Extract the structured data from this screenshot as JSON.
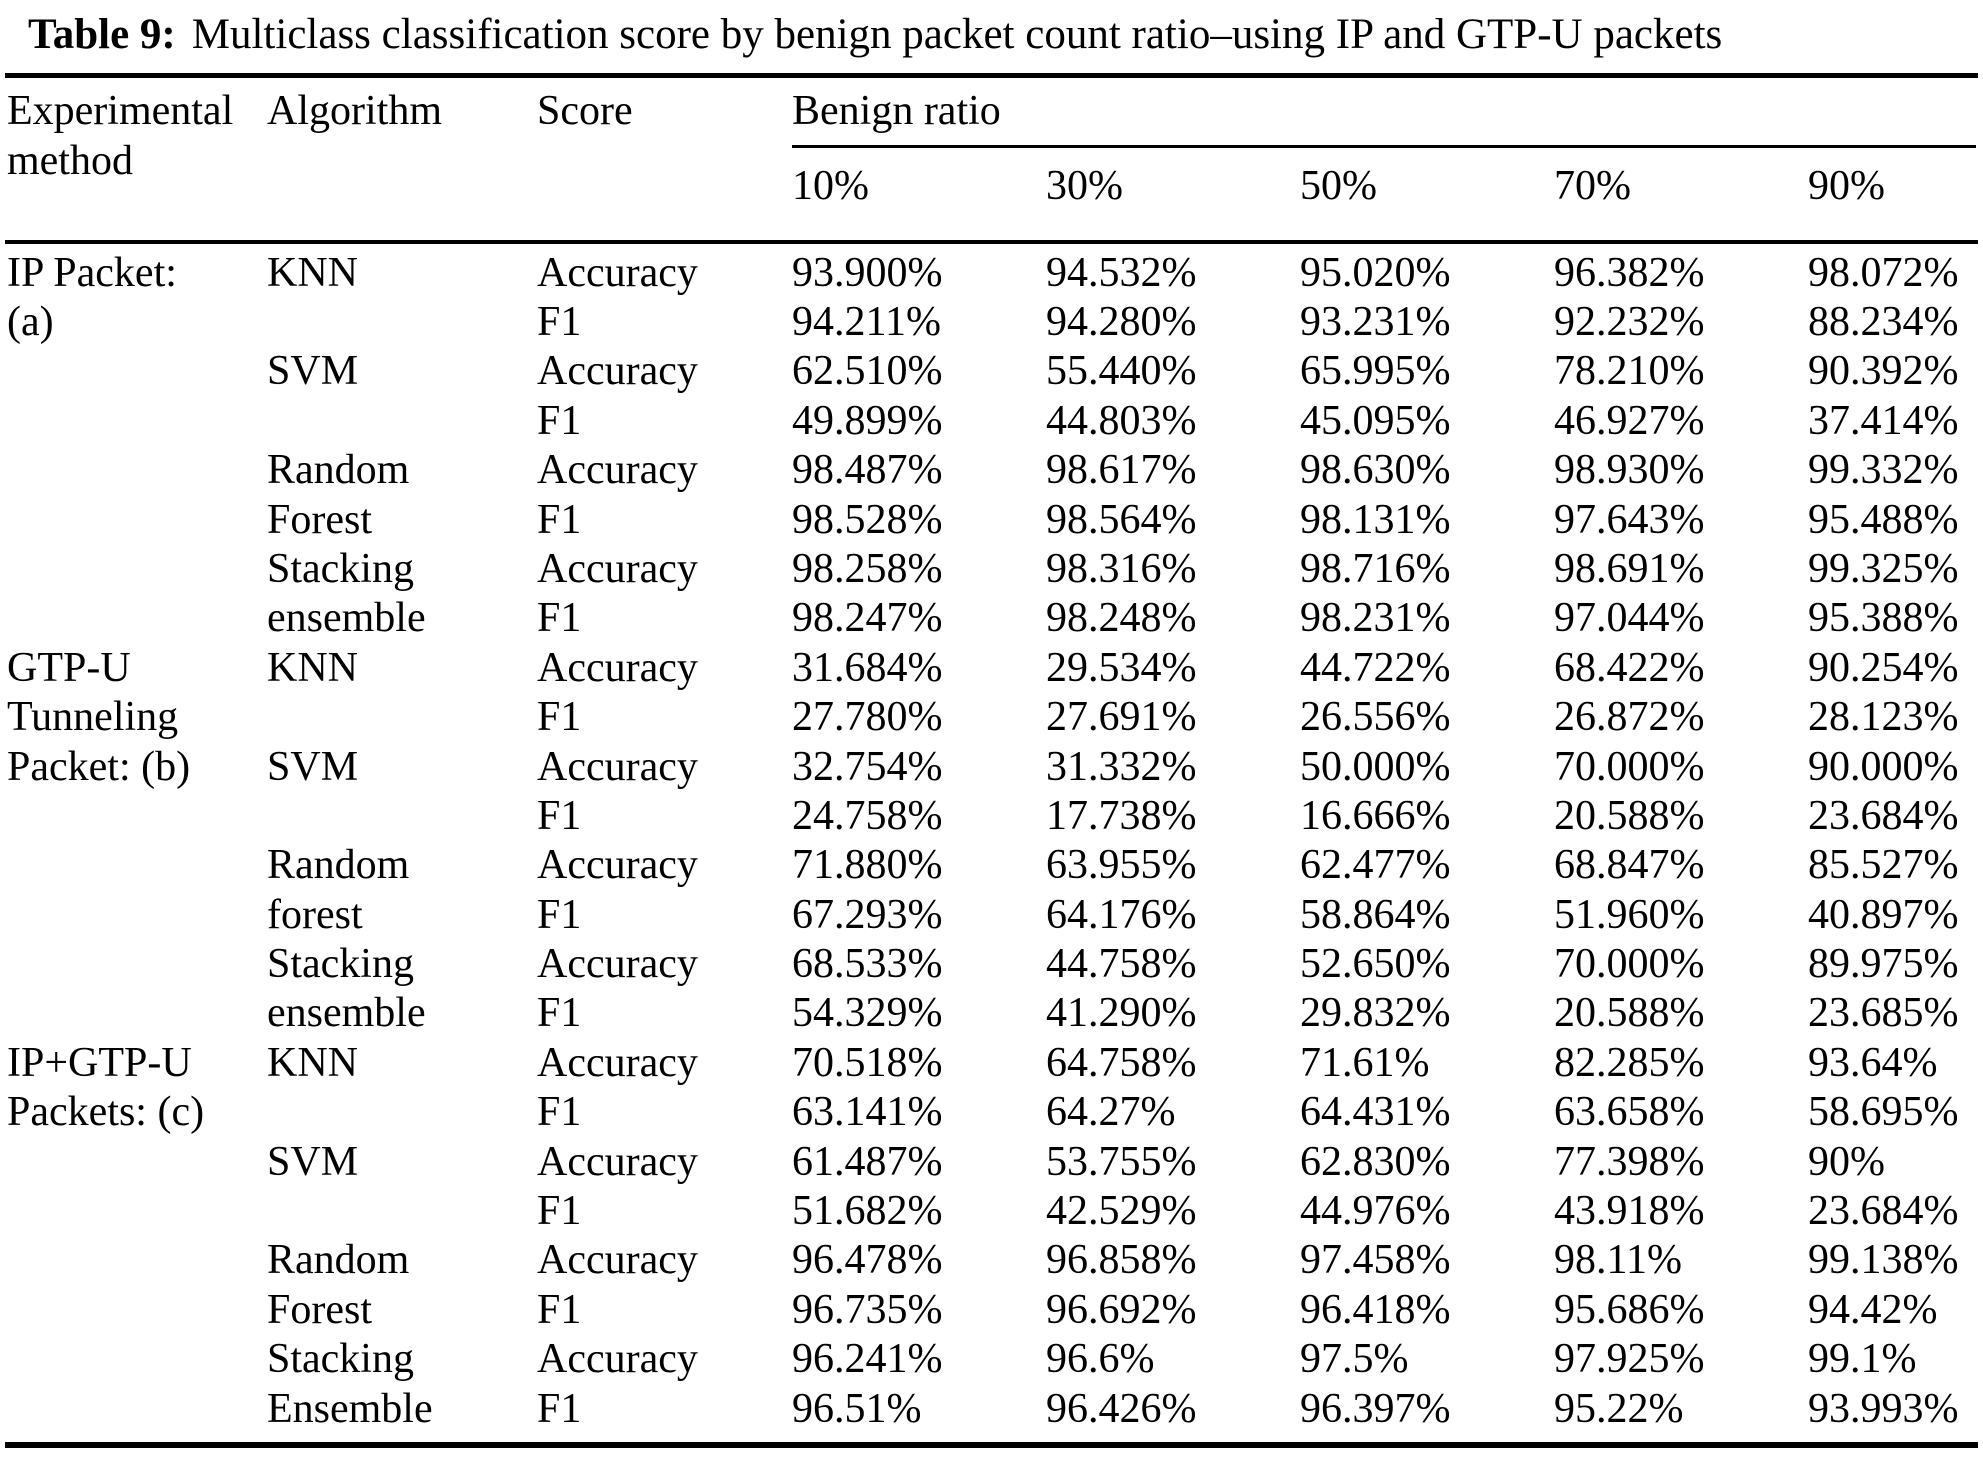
{
  "caption": {
    "label": "Table 9:",
    "text": "Multiclass classification score by benign packet count ratio–using IP and GTP-U packets"
  },
  "header": {
    "experimental_method": "Experimental method",
    "algorithm": "Algorithm",
    "score": "Score",
    "benign_ratio": "Benign ratio",
    "ratios": [
      "10%",
      "30%",
      "50%",
      "70%",
      "90%"
    ]
  },
  "colors": {
    "text": "#000000",
    "background": "#ffffff",
    "rule": "#000000"
  },
  "table": {
    "rows": [
      {
        "method": "IP Packet:",
        "algorithm": "KNN",
        "score": "Accuracy",
        "values": [
          "93.900%",
          "94.532%",
          "95.020%",
          "96.382%",
          "98.072%"
        ]
      },
      {
        "method": "(a)",
        "algorithm": "",
        "score": "F1",
        "values": [
          "94.211%",
          "94.280%",
          "93.231%",
          "92.232%",
          "88.234%"
        ]
      },
      {
        "method": "",
        "algorithm": "SVM",
        "score": "Accuracy",
        "values": [
          "62.510%",
          "55.440%",
          "65.995%",
          "78.210%",
          "90.392%"
        ]
      },
      {
        "method": "",
        "algorithm": "",
        "score": "F1",
        "values": [
          "49.899%",
          "44.803%",
          "45.095%",
          "46.927%",
          "37.414%"
        ]
      },
      {
        "method": "",
        "algorithm": "Random",
        "score": "Accuracy",
        "values": [
          "98.487%",
          "98.617%",
          "98.630%",
          "98.930%",
          "99.332%"
        ]
      },
      {
        "method": "",
        "algorithm": "Forest",
        "score": "F1",
        "values": [
          "98.528%",
          "98.564%",
          "98.131%",
          "97.643%",
          "95.488%"
        ]
      },
      {
        "method": "",
        "algorithm": "Stacking",
        "score": "Accuracy",
        "values": [
          "98.258%",
          "98.316%",
          "98.716%",
          "98.691%",
          "99.325%"
        ]
      },
      {
        "method": "",
        "algorithm": "ensemble",
        "score": "F1",
        "values": [
          "98.247%",
          "98.248%",
          "98.231%",
          "97.044%",
          "95.388%"
        ]
      },
      {
        "method": "GTP-U",
        "algorithm": "KNN",
        "score": "Accuracy",
        "values": [
          "31.684%",
          "29.534%",
          "44.722%",
          "68.422%",
          "90.254%"
        ]
      },
      {
        "method": "Tunneling",
        "algorithm": "",
        "score": "F1",
        "values": [
          "27.780%",
          "27.691%",
          "26.556%",
          "26.872%",
          "28.123%"
        ]
      },
      {
        "method": "Packet: (b)",
        "algorithm": "SVM",
        "score": "Accuracy",
        "values": [
          "32.754%",
          "31.332%",
          "50.000%",
          "70.000%",
          "90.000%"
        ]
      },
      {
        "method": "",
        "algorithm": "",
        "score": "F1",
        "values": [
          "24.758%",
          "17.738%",
          "16.666%",
          "20.588%",
          "23.684%"
        ]
      },
      {
        "method": "",
        "algorithm": "Random",
        "score": "Accuracy",
        "values": [
          "71.880%",
          "63.955%",
          "62.477%",
          "68.847%",
          "85.527%"
        ]
      },
      {
        "method": "",
        "algorithm": "forest",
        "score": "F1",
        "values": [
          "67.293%",
          "64.176%",
          "58.864%",
          "51.960%",
          "40.897%"
        ]
      },
      {
        "method": "",
        "algorithm": "Stacking",
        "score": "Accuracy",
        "values": [
          "68.533%",
          "44.758%",
          "52.650%",
          "70.000%",
          "89.975%"
        ]
      },
      {
        "method": "",
        "algorithm": "ensemble",
        "score": "F1",
        "values": [
          "54.329%",
          "41.290%",
          "29.832%",
          "20.588%",
          "23.685%"
        ]
      },
      {
        "method": "IP+GTP-U",
        "algorithm": "KNN",
        "score": "Accuracy",
        "values": [
          "70.518%",
          "64.758%",
          "71.61%",
          "82.285%",
          "93.64%"
        ]
      },
      {
        "method": "Packets: (c)",
        "algorithm": "",
        "score": "F1",
        "values": [
          "63.141%",
          "64.27%",
          "64.431%",
          "63.658%",
          "58.695%"
        ]
      },
      {
        "method": "",
        "algorithm": "SVM",
        "score": "Accuracy",
        "values": [
          "61.487%",
          "53.755%",
          "62.830%",
          "77.398%",
          "90%"
        ]
      },
      {
        "method": "",
        "algorithm": "",
        "score": "F1",
        "values": [
          "51.682%",
          "42.529%",
          "44.976%",
          "43.918%",
          "23.684%"
        ]
      },
      {
        "method": "",
        "algorithm": "Random",
        "score": "Accuracy",
        "values": [
          "96.478%",
          "96.858%",
          "97.458%",
          "98.11%",
          "99.138%"
        ]
      },
      {
        "method": "",
        "algorithm": "Forest",
        "score": "F1",
        "values": [
          "96.735%",
          "96.692%",
          "96.418%",
          "95.686%",
          "94.42%"
        ]
      },
      {
        "method": "",
        "algorithm": "Stacking",
        "score": "Accuracy",
        "values": [
          "96.241%",
          "96.6%",
          "97.5%",
          "97.925%",
          "99.1%"
        ]
      },
      {
        "method": "",
        "algorithm": "Ensemble",
        "score": "F1",
        "values": [
          "96.51%",
          "96.426%",
          "96.397%",
          "95.22%",
          "93.993%"
        ]
      }
    ]
  }
}
